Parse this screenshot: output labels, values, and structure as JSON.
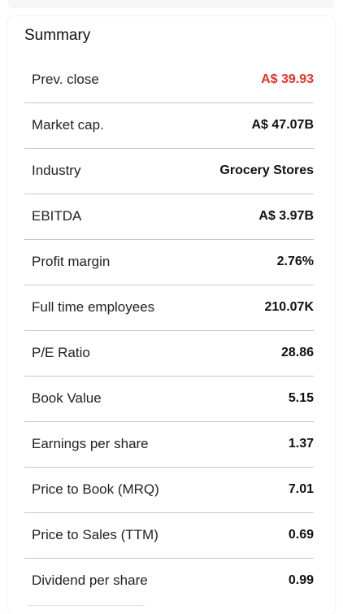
{
  "summary": {
    "title": "Summary",
    "accent_negative": "#e5332a",
    "rows": [
      {
        "label": "Prev. close",
        "value": "A$ 39.93"
      },
      {
        "label": "Market cap.",
        "value": "A$ 47.07B"
      },
      {
        "label": "Industry",
        "value": "Grocery Stores"
      },
      {
        "label": "EBITDA",
        "value": "A$ 3.97B"
      },
      {
        "label": "Profit margin",
        "value": "2.76%"
      },
      {
        "label": "Full time employees",
        "value": "210.07K"
      },
      {
        "label": "P/E Ratio",
        "value": "28.86"
      },
      {
        "label": "Book Value",
        "value": "5.15"
      },
      {
        "label": "Earnings per share",
        "value": "1.37"
      },
      {
        "label": "Price to Book (MRQ)",
        "value": "7.01"
      },
      {
        "label": "Price to Sales (TTM)",
        "value": "0.69"
      },
      {
        "label": "Dividend per share",
        "value": "0.99"
      }
    ]
  }
}
